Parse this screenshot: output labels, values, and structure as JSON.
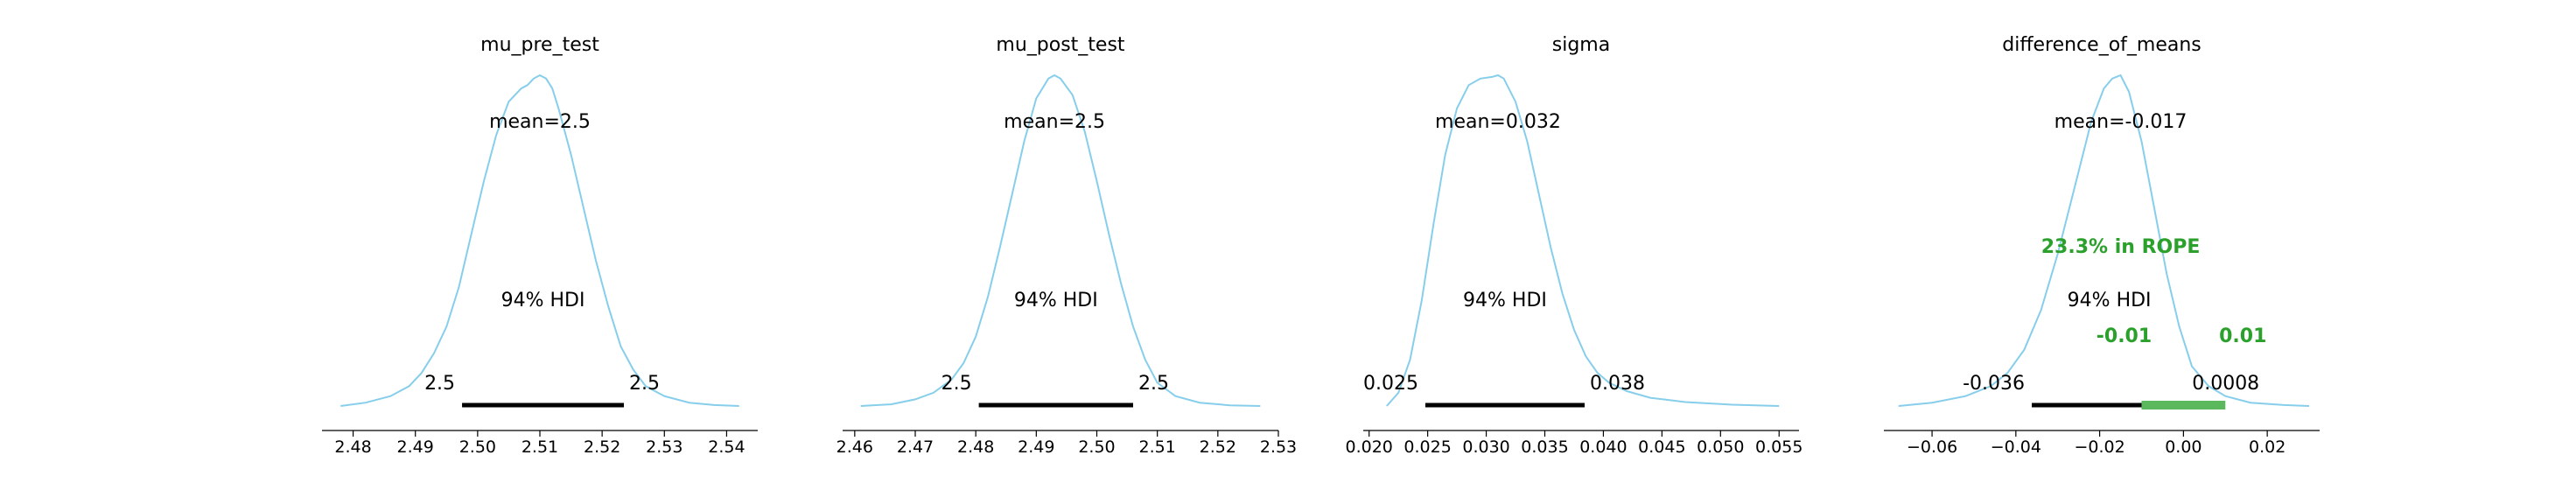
{
  "colors": {
    "kde": "#87ceeb",
    "hdi": "#000000",
    "rope": "#2ca02c",
    "rope_bar": "#5cb85c",
    "axis": "#000000"
  },
  "chart_data": [
    {
      "type": "line",
      "title": "mu_pre_test",
      "xlim": [
        2.475,
        2.545
      ],
      "xticks": [
        2.48,
        2.49,
        2.5,
        2.51,
        2.52,
        2.53,
        2.54
      ],
      "xtick_labels": [
        "2.48",
        "2.49",
        "2.50",
        "2.51",
        "2.52",
        "2.53",
        "2.54"
      ],
      "kde": {
        "x": [
          2.478,
          2.482,
          2.486,
          2.489,
          2.491,
          2.493,
          2.495,
          2.497,
          2.499,
          2.501,
          2.503,
          2.505,
          2.507,
          2.508,
          2.509,
          2.51,
          2.511,
          2.512,
          2.513,
          2.515,
          2.517,
          2.519,
          2.521,
          2.523,
          2.525,
          2.527,
          2.53,
          2.534,
          2.538,
          2.542
        ],
        "density": [
          0.0,
          0.01,
          0.03,
          0.06,
          0.1,
          0.16,
          0.24,
          0.36,
          0.52,
          0.68,
          0.82,
          0.92,
          0.96,
          0.97,
          0.99,
          1.0,
          0.99,
          0.96,
          0.9,
          0.76,
          0.6,
          0.44,
          0.3,
          0.18,
          0.11,
          0.06,
          0.03,
          0.01,
          0.003,
          0.0
        ]
      },
      "mean_label": "mean=2.5",
      "hdi_label": "94% HDI",
      "hdi": [
        2.4975,
        2.5235
      ],
      "hdi_labels": [
        "2.5",
        "2.5"
      ]
    },
    {
      "type": "line",
      "title": "mu_post_test",
      "xlim": [
        2.458,
        2.53
      ],
      "xticks": [
        2.46,
        2.47,
        2.48,
        2.49,
        2.5,
        2.51,
        2.52,
        2.53
      ],
      "xtick_labels": [
        "2.46",
        "2.47",
        "2.48",
        "2.49",
        "2.50",
        "2.51",
        "2.52",
        "2.53"
      ],
      "kde": {
        "x": [
          2.461,
          2.466,
          2.47,
          2.473,
          2.476,
          2.478,
          2.48,
          2.482,
          2.484,
          2.486,
          2.488,
          2.49,
          2.492,
          2.493,
          2.494,
          2.496,
          2.498,
          2.5,
          2.502,
          2.504,
          2.506,
          2.508,
          2.51,
          2.513,
          2.517,
          2.522,
          2.527
        ],
        "density": [
          0.0,
          0.005,
          0.02,
          0.04,
          0.08,
          0.13,
          0.21,
          0.33,
          0.48,
          0.64,
          0.8,
          0.93,
          0.99,
          1.0,
          0.99,
          0.94,
          0.83,
          0.68,
          0.52,
          0.37,
          0.24,
          0.14,
          0.07,
          0.03,
          0.01,
          0.002,
          0.0
        ]
      },
      "mean_label": "mean=2.5",
      "hdi_label": "94% HDI",
      "hdi": [
        2.4805,
        2.506
      ],
      "hdi_labels": [
        "2.5",
        "2.5"
      ]
    },
    {
      "type": "line",
      "title": "sigma",
      "xlim": [
        0.0195,
        0.0567
      ],
      "xticks": [
        0.02,
        0.025,
        0.03,
        0.035,
        0.04,
        0.045,
        0.05,
        0.055
      ],
      "xtick_labels": [
        "0.020",
        "0.025",
        "0.030",
        "0.035",
        "0.040",
        "0.045",
        "0.050",
        "0.055"
      ],
      "kde": {
        "x": [
          0.0215,
          0.0225,
          0.0235,
          0.0245,
          0.0255,
          0.0265,
          0.0275,
          0.0285,
          0.0295,
          0.0305,
          0.031,
          0.0315,
          0.0325,
          0.0335,
          0.0345,
          0.0355,
          0.0365,
          0.0375,
          0.0385,
          0.0395,
          0.0405,
          0.042,
          0.044,
          0.047,
          0.051,
          0.055
        ],
        "density": [
          0.0,
          0.04,
          0.14,
          0.32,
          0.55,
          0.76,
          0.9,
          0.97,
          0.99,
          0.995,
          1.0,
          0.99,
          0.92,
          0.8,
          0.64,
          0.48,
          0.34,
          0.23,
          0.15,
          0.1,
          0.07,
          0.045,
          0.025,
          0.012,
          0.004,
          0.0
        ]
      },
      "mean_label": "mean=0.032",
      "hdi_label": "94% HDI",
      "hdi": [
        0.0248,
        0.0384
      ],
      "hdi_labels": [
        "0.025",
        "0.038"
      ]
    },
    {
      "type": "line",
      "title": "difference_of_means",
      "xlim": [
        -0.0715,
        0.0325
      ],
      "xticks": [
        -0.06,
        -0.04,
        -0.02,
        0.0,
        0.02
      ],
      "xtick_labels": [
        "−0.06",
        "−0.04",
        "−0.02",
        "0.00",
        "0.02"
      ],
      "kde": {
        "x": [
          -0.068,
          -0.06,
          -0.052,
          -0.046,
          -0.042,
          -0.038,
          -0.034,
          -0.03,
          -0.026,
          -0.022,
          -0.019,
          -0.017,
          -0.015,
          -0.013,
          -0.01,
          -0.007,
          -0.004,
          -0.001,
          0.002,
          0.006,
          0.01,
          0.016,
          0.024,
          0.03
        ],
        "density": [
          0.0,
          0.01,
          0.03,
          0.06,
          0.1,
          0.17,
          0.29,
          0.46,
          0.66,
          0.86,
          0.96,
          0.99,
          1.0,
          0.95,
          0.8,
          0.6,
          0.4,
          0.24,
          0.12,
          0.06,
          0.03,
          0.01,
          0.003,
          0.0
        ]
      },
      "mean_label": "mean=-0.017",
      "hdi_label": "94% HDI",
      "hdi": [
        -0.0362,
        0.0008
      ],
      "hdi_labels": [
        "-0.036",
        "0.0008"
      ],
      "rope": [
        -0.01,
        0.01
      ],
      "rope_text": "23.3% in ROPE",
      "rope_labels": [
        "-0.01",
        "0.01"
      ]
    }
  ]
}
